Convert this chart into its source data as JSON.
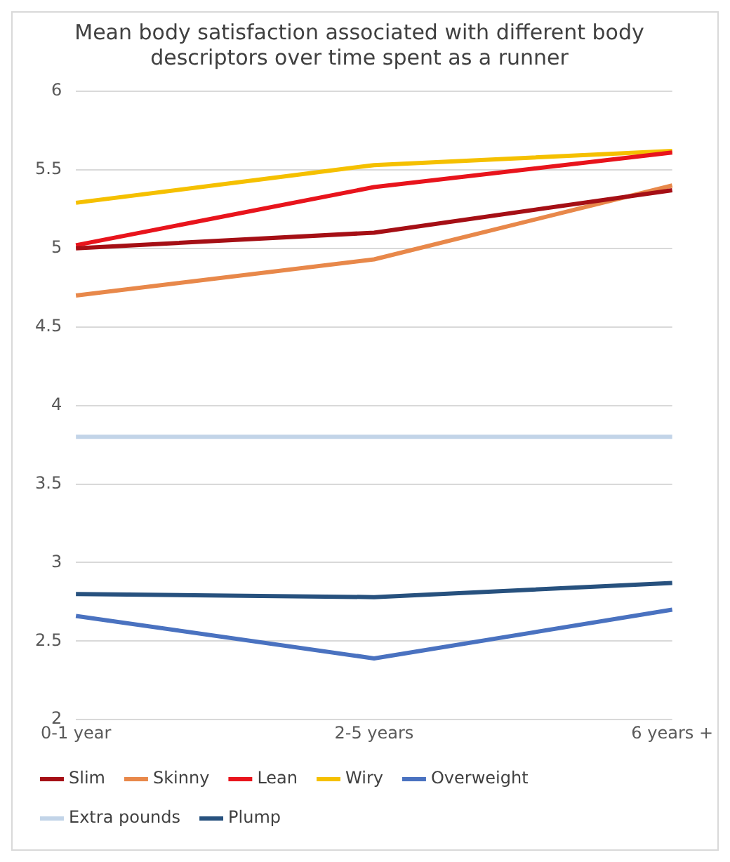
{
  "chart_data": {
    "type": "line",
    "title": "Mean body satisfaction associated with different body descriptors over time spent as a runner",
    "categories": [
      "0-1 year",
      "2-5 years",
      "6 years +"
    ],
    "series": [
      {
        "name": "Slim",
        "color": "#a50f15",
        "values": [
          5.0,
          5.1,
          5.37
        ]
      },
      {
        "name": "Skinny",
        "color": "#e8884a",
        "values": [
          4.7,
          4.93,
          5.4
        ]
      },
      {
        "name": "Lean",
        "color": "#e8141c",
        "values": [
          5.02,
          5.39,
          5.61
        ]
      },
      {
        "name": "Wiry",
        "color": "#f5c000",
        "values": [
          5.29,
          5.53,
          5.62
        ]
      },
      {
        "name": "Overweight",
        "color": "#4a72c0",
        "values": [
          2.66,
          2.39,
          2.7
        ]
      },
      {
        "name": "Extra pounds",
        "color": "#c2d4e8",
        "values": [
          3.8,
          3.8,
          3.8
        ]
      },
      {
        "name": "Plump",
        "color": "#27517e",
        "values": [
          2.8,
          2.78,
          2.87
        ]
      }
    ],
    "ylim": [
      2,
      6
    ],
    "yticks": [
      2,
      2.5,
      3,
      3.5,
      4,
      4.5,
      5,
      5.5,
      6
    ],
    "grid": "y",
    "legend": "bottom",
    "marker": "none",
    "line_style": "solid"
  }
}
